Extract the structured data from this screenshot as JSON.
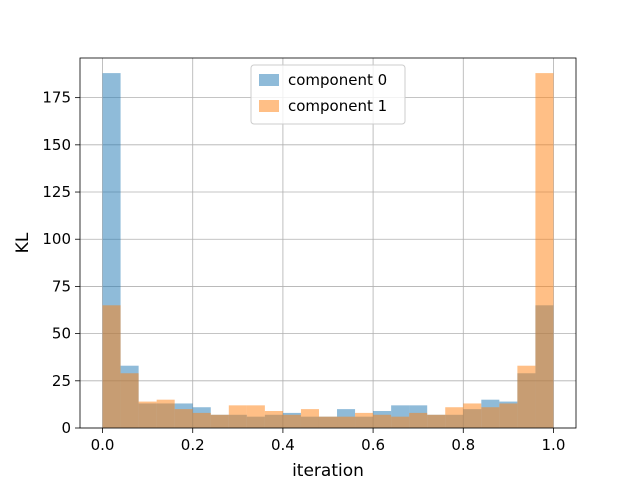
{
  "chart_data": {
    "type": "bar",
    "subtype": "overlapping-histogram",
    "title": "",
    "xlabel": "iteration",
    "ylabel": "KL",
    "xlim": [
      -0.05,
      1.05
    ],
    "ylim": [
      0,
      196
    ],
    "bins": 25,
    "bin_edges": [
      0.0,
      0.04,
      0.08,
      0.12,
      0.16,
      0.2,
      0.24,
      0.28,
      0.32,
      0.36,
      0.4,
      0.44,
      0.48,
      0.52,
      0.56,
      0.6,
      0.64,
      0.68,
      0.72,
      0.76,
      0.8,
      0.84,
      0.88,
      0.92,
      0.96,
      1.0
    ],
    "x_ticks": [
      0.0,
      0.2,
      0.4,
      0.6,
      0.8,
      1.0
    ],
    "x_tick_labels": [
      "0.0",
      "0.2",
      "0.4",
      "0.6",
      "0.8",
      "1.0"
    ],
    "y_ticks": [
      0,
      25,
      50,
      75,
      100,
      125,
      150,
      175
    ],
    "y_tick_labels": [
      "0",
      "25",
      "50",
      "75",
      "100",
      "125",
      "150",
      "175"
    ],
    "grid": true,
    "legend_position": "top-center",
    "series": [
      {
        "name": "component 0",
        "color": "#1f77b4",
        "alpha": 0.5,
        "values": [
          188,
          33,
          13,
          13,
          13,
          11,
          7,
          7,
          6,
          7,
          8,
          6,
          6,
          10,
          6,
          9,
          12,
          12,
          7,
          7,
          10,
          15,
          14,
          29,
          65
        ]
      },
      {
        "name": "component 1",
        "color": "#ff7f0e",
        "alpha": 0.5,
        "values": [
          65,
          29,
          14,
          15,
          10,
          8,
          7,
          12,
          12,
          9,
          7,
          10,
          6,
          6,
          8,
          7,
          6,
          8,
          7,
          11,
          13,
          11,
          13,
          33,
          188
        ]
      }
    ]
  }
}
